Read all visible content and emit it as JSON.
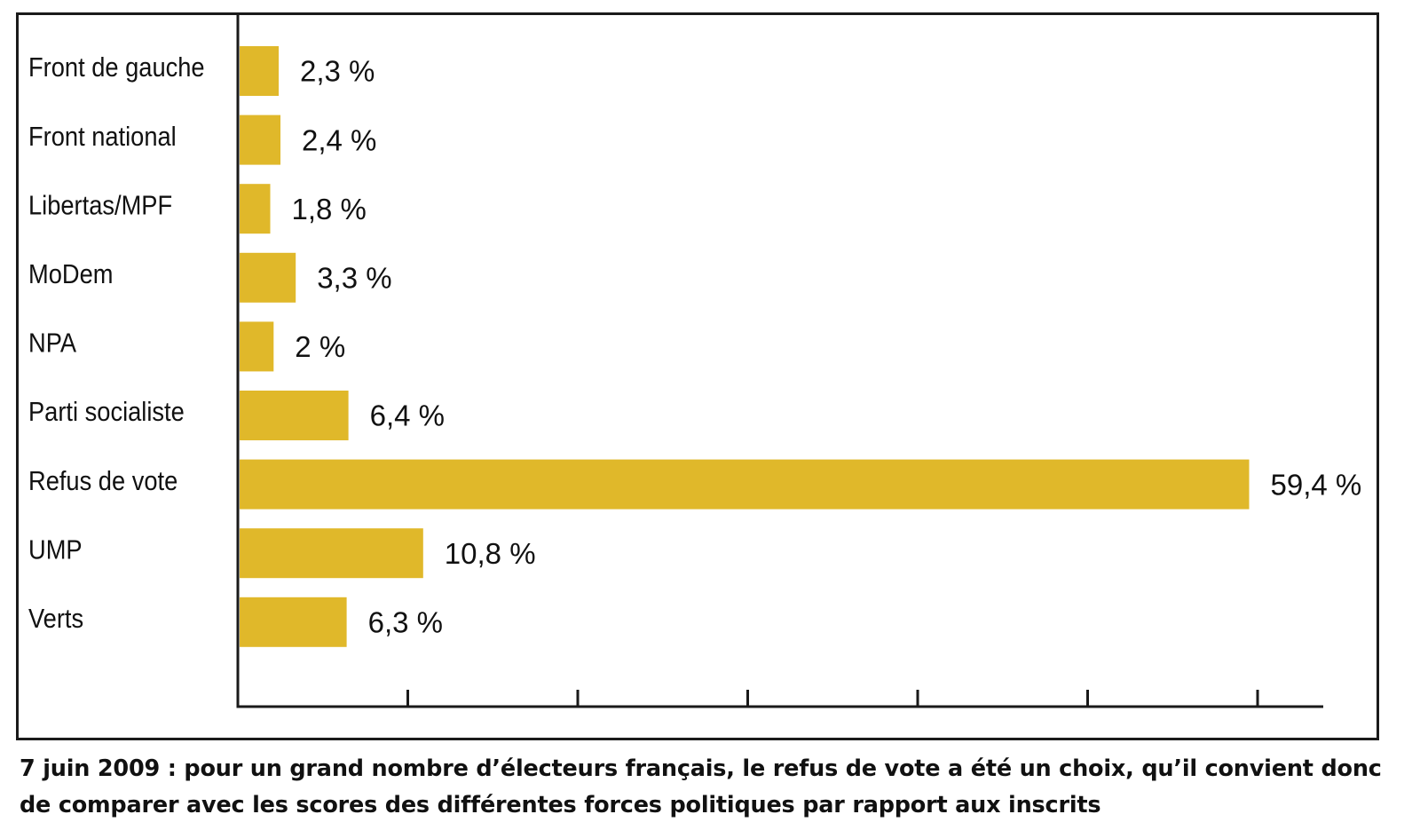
{
  "chart_data": {
    "type": "bar",
    "orientation": "horizontal",
    "categories": [
      "Front de gauche",
      "Front national",
      "Libertas/MPF",
      "MoDem",
      "NPA",
      "Parti socialiste",
      "Refus de vote",
      "UMP",
      "Verts"
    ],
    "values": [
      2.3,
      2.4,
      1.8,
      3.3,
      2,
      6.4,
      59.4,
      10.8,
      6.3
    ],
    "value_labels": [
      "2,3 %",
      "2,4 %",
      "1,8 %",
      "3,3 %",
      "2 %",
      "6,4 %",
      "59,4 %",
      "10,8 %",
      "6,3 %"
    ],
    "xlim": [
      0,
      60
    ],
    "x_ticks": [
      10,
      20,
      30,
      40,
      50,
      60
    ],
    "grid": false,
    "legend": "none",
    "bar_color": "#e0b82a",
    "caption": "7 juin 2009 : pour un grand nombre d’électeurs français, le refus de vote a été un choix, qu’il convient donc de comparer avec les scores des différentes forces politiques par rapport aux inscrits"
  }
}
